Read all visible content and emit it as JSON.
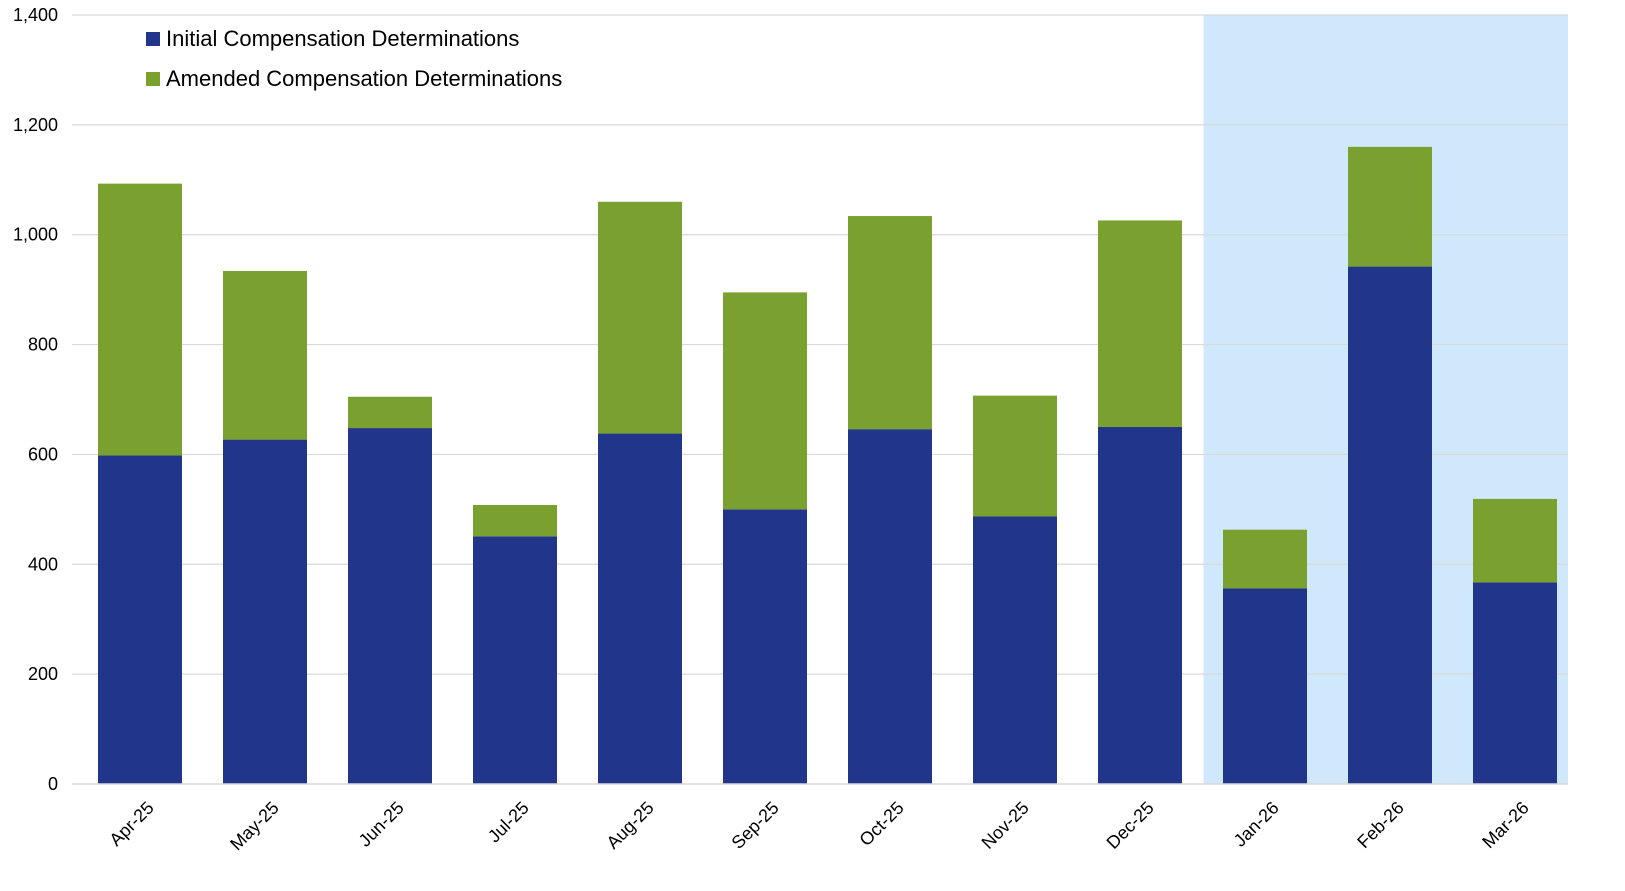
{
  "chart_data": {
    "type": "bar",
    "stacked": true,
    "categories": [
      "Apr-25",
      "May-25",
      "Jun-25",
      "Jul-25",
      "Aug-25",
      "Sep-25",
      "Oct-25",
      "Nov-25",
      "Dec-25",
      "Jan-26",
      "Feb-26",
      "Mar-26"
    ],
    "series": [
      {
        "name": "Initial Compensation Determinations",
        "color": "#21368a",
        "values": [
          598,
          627,
          648,
          451,
          638,
          500,
          646,
          487,
          650,
          356,
          942,
          367
        ]
      },
      {
        "name": "Amended Compensation Determinations",
        "color": "#7aa130",
        "values": [
          495,
          307,
          57,
          57,
          422,
          395,
          388,
          220,
          376,
          107,
          218,
          152
        ]
      }
    ],
    "ylim": [
      0,
      1400
    ],
    "yticks": [
      0,
      200,
      400,
      600,
      800,
      1000,
      1200,
      1400
    ],
    "ytick_labels": [
      "0",
      "200",
      "400",
      "600",
      "800",
      "1,000",
      "1,200",
      "1,400"
    ],
    "grid": true,
    "legend_position": "top-left",
    "highlight": {
      "from_category": "Jan-26",
      "to_category": "Mar-26",
      "color": "#cfe8fb"
    },
    "title": "",
    "xlabel": "",
    "ylabel": ""
  }
}
